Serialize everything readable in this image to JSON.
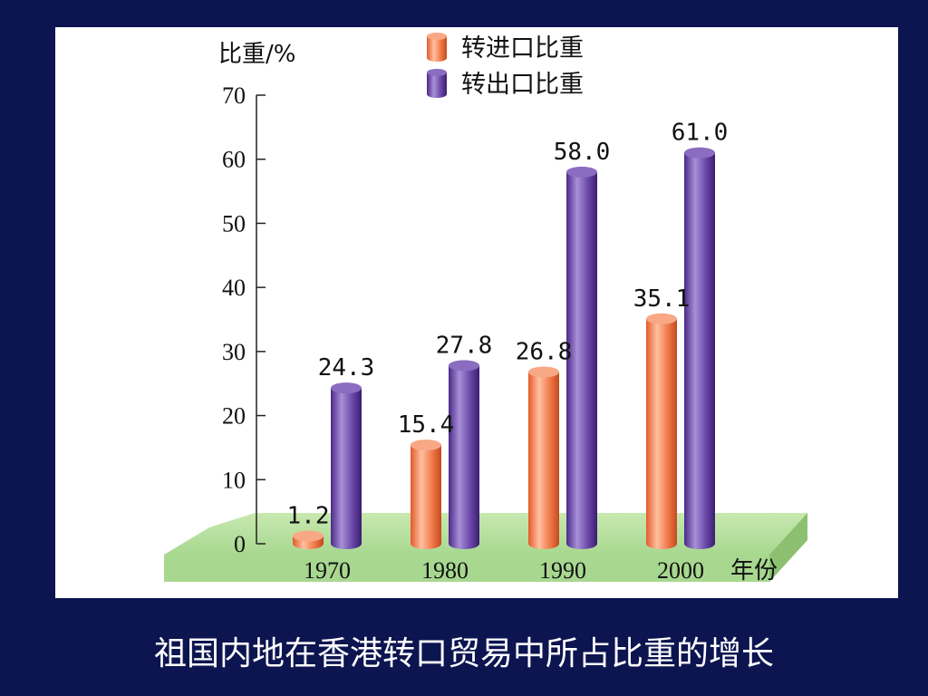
{
  "slide": {
    "caption": "祖国内地在香港转口贸易中所占比重的增长"
  },
  "colors": {
    "background": "#0c1550",
    "panel": "#ffffff",
    "import_series": "#f07a4a",
    "export_series": "#6b48a8",
    "base_platform": "#a8d890"
  },
  "chart_data": {
    "type": "bar",
    "ylabel": "比重/%",
    "xlabel_unit": "年份",
    "ylim": [
      0,
      70
    ],
    "yticks": [
      0,
      10,
      20,
      30,
      40,
      50,
      60,
      70
    ],
    "categories": [
      "1970",
      "1980",
      "1990",
      "2000"
    ],
    "series": [
      {
        "name": "转进口比重",
        "values": [
          1.2,
          15.4,
          26.8,
          35.1
        ],
        "labels": [
          "1.2",
          "15.4",
          "26.8",
          "35.1"
        ]
      },
      {
        "name": "转出口比重",
        "values": [
          24.3,
          27.8,
          58.0,
          61.0
        ],
        "labels": [
          "24.3",
          "27.8",
          "58.0",
          "61.0"
        ]
      }
    ],
    "legend_position": "top",
    "grid": false
  }
}
